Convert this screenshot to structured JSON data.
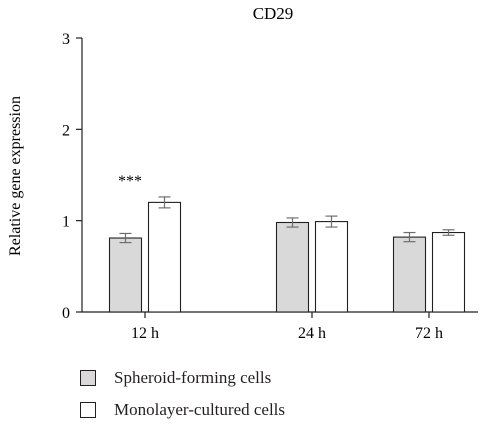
{
  "chart_data": {
    "type": "bar",
    "title": "CD29",
    "ylabel": "Relative gene expression",
    "xlabel": "",
    "categories": [
      "12 h",
      "24 h",
      "72 h"
    ],
    "ylim": [
      0,
      3
    ],
    "yticks": [
      "0",
      "1",
      "2",
      "3"
    ],
    "series": [
      {
        "name": "Spheroid-forming cells",
        "values": [
          0.81,
          0.98,
          0.82
        ],
        "errors": [
          0.05,
          0.05,
          0.05
        ],
        "color": "#d9d9d9"
      },
      {
        "name": "Monolayer-cultured cells",
        "values": [
          1.2,
          0.99,
          0.87
        ],
        "errors": [
          0.06,
          0.06,
          0.03
        ],
        "color": "#ffffff"
      }
    ],
    "annotations": [
      {
        "category": "12 h",
        "text": "***"
      }
    ],
    "grid": false,
    "legend": "bottom-left"
  }
}
